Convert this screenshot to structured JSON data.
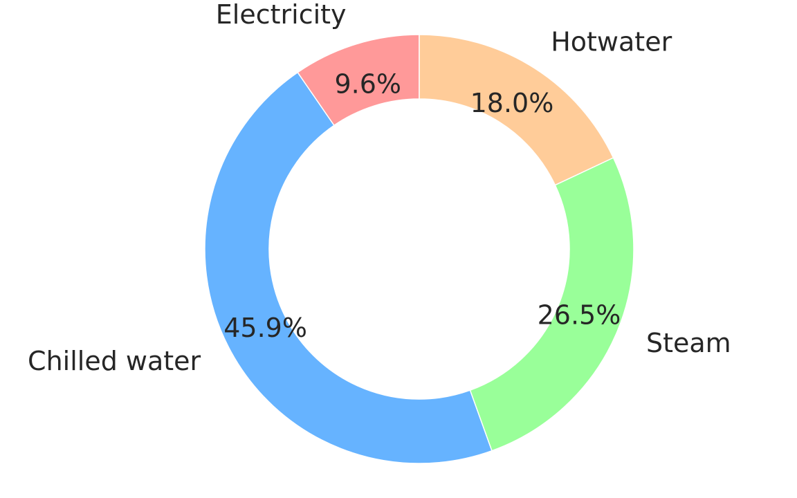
{
  "chart_data": {
    "type": "pie",
    "donut": true,
    "categories": [
      "Electricity",
      "Chilled water",
      "Steam",
      "Hotwater"
    ],
    "values": [
      9.6,
      45.9,
      26.5,
      18.0
    ],
    "percent_labels": [
      "9.6%",
      "45.9%",
      "26.5%",
      "18.0%"
    ],
    "colors": [
      "#ff9999",
      "#66b3ff",
      "#99ff99",
      "#ffcc99"
    ],
    "start_angle_deg": 90,
    "direction": "counterclockwise",
    "legend": "none"
  }
}
